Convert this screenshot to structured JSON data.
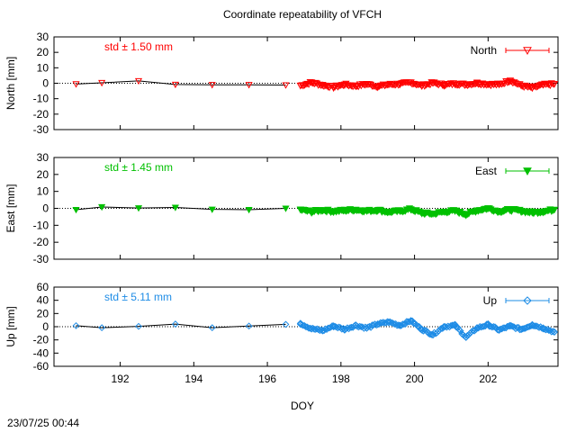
{
  "chart_data": {
    "type": "line",
    "title": "Coordinate repeatability of VFCH",
    "xlabel": "DOY",
    "xlim": [
      190.2,
      203.9
    ],
    "xticks": [
      192,
      194,
      196,
      198,
      200,
      202
    ],
    "timestamp": "23/07/25 00:44",
    "panels": [
      {
        "name": "North",
        "ylabel": "North [mm]",
        "ylim": [
          -30,
          30
        ],
        "yticks": [
          30,
          20,
          10,
          0,
          -10,
          -20,
          -30
        ],
        "std_label": "std ± 1.50 mm",
        "legend": "North",
        "color": "#ff0000",
        "marker": "triangle-down-open",
        "daily": {
          "x": [
            190.8,
            191.5,
            192.5,
            193.5,
            194.5,
            195.5,
            196.5
          ],
          "y": [
            -0.5,
            0.3,
            1.5,
            -0.8,
            -1.0,
            -1.0,
            -1.2
          ]
        },
        "dense_segments": [
          {
            "x": 196.9,
            "y": -1.5
          },
          {
            "x": 197.2,
            "y": 0.5
          },
          {
            "x": 197.5,
            "y": -1.2
          },
          {
            "x": 197.8,
            "y": -2.5
          },
          {
            "x": 198.1,
            "y": -0.8
          },
          {
            "x": 198.4,
            "y": -1.8
          },
          {
            "x": 198.7,
            "y": -0.5
          },
          {
            "x": 199.0,
            "y": -2.0
          },
          {
            "x": 199.3,
            "y": -0.8
          },
          {
            "x": 199.6,
            "y": -0.5
          },
          {
            "x": 199.9,
            "y": 0.5
          },
          {
            "x": 200.2,
            "y": -1.5
          },
          {
            "x": 200.5,
            "y": 0.2
          },
          {
            "x": 200.8,
            "y": -1.0
          },
          {
            "x": 201.1,
            "y": -0.3
          },
          {
            "x": 201.4,
            "y": -0.8
          },
          {
            "x": 201.7,
            "y": 0.1
          },
          {
            "x": 202.0,
            "y": -0.6
          },
          {
            "x": 202.3,
            "y": -0.8
          },
          {
            "x": 202.6,
            "y": 1.8
          },
          {
            "x": 202.9,
            "y": -1.5
          },
          {
            "x": 203.2,
            "y": -3.0
          },
          {
            "x": 203.5,
            "y": -1.0
          },
          {
            "x": 203.8,
            "y": -0.5
          }
        ]
      },
      {
        "name": "East",
        "ylabel": "East [mm]",
        "ylim": [
          -30,
          30
        ],
        "yticks": [
          30,
          20,
          10,
          0,
          -10,
          -20,
          -30
        ],
        "std_label": "std ± 1.45 mm",
        "legend": "East",
        "color": "#00c000",
        "marker": "triangle-down-filled",
        "daily": {
          "x": [
            190.8,
            191.5,
            192.5,
            193.5,
            194.5,
            195.5,
            196.5
          ],
          "y": [
            -0.8,
            0.8,
            0.2,
            0.5,
            -0.6,
            -0.8,
            0.0
          ]
        },
        "dense_segments": [
          {
            "x": 196.9,
            "y": -0.8
          },
          {
            "x": 197.2,
            "y": -2.0
          },
          {
            "x": 197.5,
            "y": -1.0
          },
          {
            "x": 197.8,
            "y": -1.8
          },
          {
            "x": 198.1,
            "y": -1.2
          },
          {
            "x": 198.4,
            "y": -0.8
          },
          {
            "x": 198.7,
            "y": -1.5
          },
          {
            "x": 199.0,
            "y": -1.0
          },
          {
            "x": 199.3,
            "y": -2.2
          },
          {
            "x": 199.6,
            "y": -1.6
          },
          {
            "x": 199.9,
            "y": -0.5
          },
          {
            "x": 200.2,
            "y": -2.8
          },
          {
            "x": 200.5,
            "y": -3.2
          },
          {
            "x": 200.8,
            "y": -2.0
          },
          {
            "x": 201.1,
            "y": -1.5
          },
          {
            "x": 201.4,
            "y": -3.5
          },
          {
            "x": 201.7,
            "y": -1.2
          },
          {
            "x": 202.0,
            "y": 0.0
          },
          {
            "x": 202.3,
            "y": -1.8
          },
          {
            "x": 202.6,
            "y": -0.8
          },
          {
            "x": 202.9,
            "y": -1.5
          },
          {
            "x": 203.2,
            "y": -2.5
          },
          {
            "x": 203.5,
            "y": -1.8
          },
          {
            "x": 203.8,
            "y": -0.8
          }
        ]
      },
      {
        "name": "Up",
        "ylabel": "Up [mm]",
        "ylim": [
          -60,
          60
        ],
        "yticks": [
          60,
          40,
          20,
          0,
          -20,
          -40,
          -60
        ],
        "std_label": "std ± 5.11 mm",
        "legend": "Up",
        "color": "#1e8ce6",
        "marker": "diamond-open",
        "daily": {
          "x": [
            190.8,
            191.5,
            192.5,
            193.5,
            194.5,
            195.5,
            196.5
          ],
          "y": [
            1.5,
            -1.5,
            0.5,
            4.0,
            -1.5,
            1.0,
            3.5
          ]
        },
        "dense_segments": [
          {
            "x": 196.9,
            "y": 5.0
          },
          {
            "x": 197.2,
            "y": -3.0
          },
          {
            "x": 197.5,
            "y": -6.0
          },
          {
            "x": 197.8,
            "y": 1.0
          },
          {
            "x": 198.1,
            "y": -4.0
          },
          {
            "x": 198.4,
            "y": 2.0
          },
          {
            "x": 198.7,
            "y": -2.0
          },
          {
            "x": 199.0,
            "y": 4.0
          },
          {
            "x": 199.3,
            "y": 7.0
          },
          {
            "x": 199.6,
            "y": 2.0
          },
          {
            "x": 199.9,
            "y": 9.0
          },
          {
            "x": 200.2,
            "y": -4.0
          },
          {
            "x": 200.5,
            "y": -12.0
          },
          {
            "x": 200.8,
            "y": 0.0
          },
          {
            "x": 201.1,
            "y": 2.0
          },
          {
            "x": 201.4,
            "y": -16.0
          },
          {
            "x": 201.7,
            "y": -2.0
          },
          {
            "x": 202.0,
            "y": 3.0
          },
          {
            "x": 202.3,
            "y": -5.0
          },
          {
            "x": 202.6,
            "y": 1.0
          },
          {
            "x": 202.9,
            "y": -4.0
          },
          {
            "x": 203.2,
            "y": 3.0
          },
          {
            "x": 203.5,
            "y": -2.0
          },
          {
            "x": 203.8,
            "y": -8.0
          }
        ]
      }
    ]
  }
}
